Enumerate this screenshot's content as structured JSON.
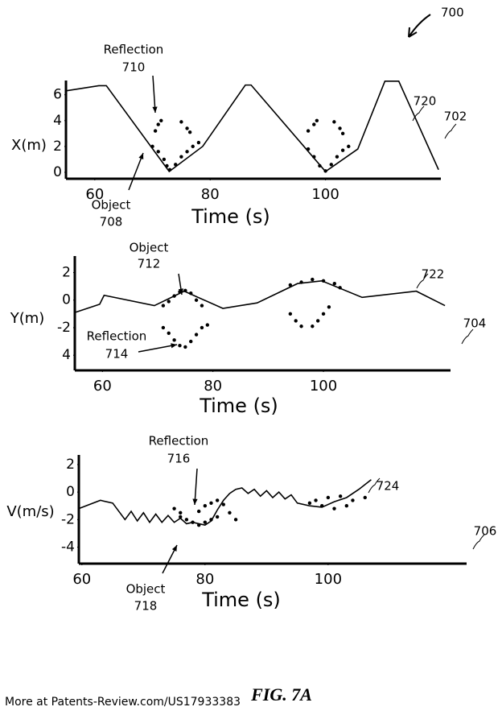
{
  "figure_number": "700",
  "figure_label": "FIG. 7A",
  "footer": "More at Patents-Review.com/US17933383",
  "chart_data": [
    {
      "type": "line",
      "y_label": "X(m)",
      "x_label": "Time (s)",
      "xlim": [
        55,
        120
      ],
      "ylim": [
        -0.5,
        7.1
      ],
      "xticks": [
        60,
        80,
        100
      ],
      "yticks": [
        0,
        2,
        4,
        6
      ],
      "annotations": [
        "Reflection",
        "710",
        "Object",
        "708",
        "720",
        "702"
      ],
      "series": [
        {
          "name": "720",
          "kind": "line",
          "color": "#000000",
          "x": [
            55,
            60.7,
            62,
            72.9,
            78.7,
            86.1,
            87.1,
            100,
            105.6,
            110.3,
            112.7,
            119.6
          ],
          "values": [
            6.3,
            6.7,
            6.7,
            0.06,
            2,
            6.75,
            6.75,
            0.06,
            1.8,
            7.05,
            7.05,
            0.2
          ]
        },
        {
          "kind": "dots",
          "color": "#000000",
          "x": [
            70,
            71,
            72,
            72.5,
            73,
            74,
            75,
            76,
            77,
            78,
            97,
            98,
            99,
            100,
            101,
            102,
            103,
            104
          ],
          "values": [
            2,
            1.6,
            1,
            0.5,
            0.2,
            0.6,
            1.2,
            1.6,
            2,
            2.3,
            1.8,
            1.2,
            0.5,
            0.1,
            0.6,
            1.2,
            1.7,
            2
          ]
        },
        {
          "kind": "dots",
          "color": "#000000",
          "x": [
            70.5,
            71,
            71.5,
            75,
            76,
            76.5,
            97,
            98,
            98.5,
            101.5,
            102.5,
            103
          ],
          "values": [
            3.2,
            3.7,
            4,
            3.9,
            3.4,
            3.1,
            3.2,
            3.7,
            4,
            3.9,
            3.4,
            3
          ]
        }
      ]
    },
    {
      "type": "line",
      "y_label": "Y(m)",
      "x_label": "Time (s)",
      "xlim": [
        55,
        123
      ],
      "ylim": [
        -5.1,
        3.2
      ],
      "xticks": [
        60,
        80,
        100
      ],
      "yticks": [
        2,
        0,
        -2,
        {
          "value": -4,
          "label": "4"
        }
      ],
      "annotations": [
        "Object",
        "712",
        "Reflection",
        "714",
        "722",
        "704"
      ],
      "series": [
        {
          "name": "722",
          "kind": "line",
          "color": "#000000",
          "x": [
            55,
            59.5,
            60.3,
            69.4,
            74.8,
            81.8,
            88,
            95.3,
            99.7,
            107,
            116.8,
            122
          ],
          "values": [
            -0.9,
            -0.3,
            0.35,
            -0.4,
            0.65,
            -0.6,
            -0.2,
            1.2,
            1.4,
            0.2,
            0.65,
            -0.4
          ]
        },
        {
          "kind": "dots",
          "color": "#000000",
          "x": [
            71,
            72,
            73,
            74,
            75,
            76,
            77,
            78,
            94,
            96,
            98,
            100,
            102,
            103
          ],
          "values": [
            -0.4,
            -0.1,
            0.3,
            0.6,
            0.7,
            0.5,
            0,
            -0.4,
            1.1,
            1.3,
            1.5,
            1.4,
            1.2,
            0.9
          ]
        },
        {
          "kind": "dots",
          "color": "#000000",
          "x": [
            71,
            72,
            73,
            74,
            75,
            76,
            77,
            78,
            79,
            94,
            95,
            96,
            98,
            99,
            100,
            101
          ],
          "values": [
            -2,
            -2.4,
            -2.9,
            -3.3,
            -3.4,
            -3,
            -2.5,
            -2,
            -1.8,
            -1,
            -1.5,
            -1.9,
            -1.9,
            -1.5,
            -1,
            -0.5
          ]
        }
      ]
    },
    {
      "type": "line",
      "y_label": "V(m/s)",
      "x_label": "Time (s)",
      "xlim": [
        59.5,
        122.5
      ],
      "ylim": [
        -5.2,
        2.7
      ],
      "xticks": [
        60,
        80,
        100
      ],
      "yticks": [
        2,
        0,
        -2,
        -4
      ],
      "annotations": [
        "Reflection",
        "716",
        "Object",
        "718",
        "724",
        "706"
      ],
      "series": [
        {
          "name": "724",
          "kind": "line",
          "color": "#000000",
          "x": [
            59.5,
            63,
            65,
            66,
            67,
            68,
            69,
            70,
            71,
            72,
            73,
            74,
            75,
            76,
            77,
            78,
            80,
            81,
            82,
            83,
            84,
            85,
            86,
            87,
            88,
            89,
            90,
            91,
            92,
            93,
            94,
            95,
            97,
            99,
            101,
            103,
            105,
            107
          ],
          "values": [
            -1.2,
            -0.6,
            -0.8,
            -1.4,
            -2,
            -1.4,
            -2.1,
            -1.5,
            -2.2,
            -1.6,
            -2.2,
            -1.7,
            -2.2,
            -1.9,
            -2.3,
            -2.2,
            -2.4,
            -2.1,
            -1.3,
            -0.6,
            -0.1,
            0.2,
            0.3,
            -0.1,
            0.2,
            -0.3,
            0.1,
            -0.4,
            0,
            -0.5,
            -0.2,
            -0.8,
            -1,
            -1.1,
            -0.7,
            -0.4,
            0.2,
            0.9
          ]
        },
        {
          "kind": "dots",
          "color": "#000000",
          "x": [
            76,
            77,
            78,
            79,
            80,
            81,
            82,
            97,
            99,
            101,
            103
          ],
          "values": [
            -1.8,
            -2,
            -2.2,
            -2.4,
            -2.2,
            -2,
            -1.8,
            -0.8,
            -1,
            -1.2,
            -1
          ]
        },
        {
          "kind": "dots",
          "color": "#000000",
          "x": [
            75,
            76,
            79,
            80,
            81,
            82,
            83,
            84,
            85,
            98,
            100,
            102,
            104,
            106
          ],
          "values": [
            -1.2,
            -1.5,
            -1.4,
            -1,
            -0.8,
            -0.6,
            -0.9,
            -1.5,
            -2,
            -0.6,
            -0.4,
            -0.3,
            -0.6,
            -0.4
          ]
        }
      ]
    }
  ]
}
